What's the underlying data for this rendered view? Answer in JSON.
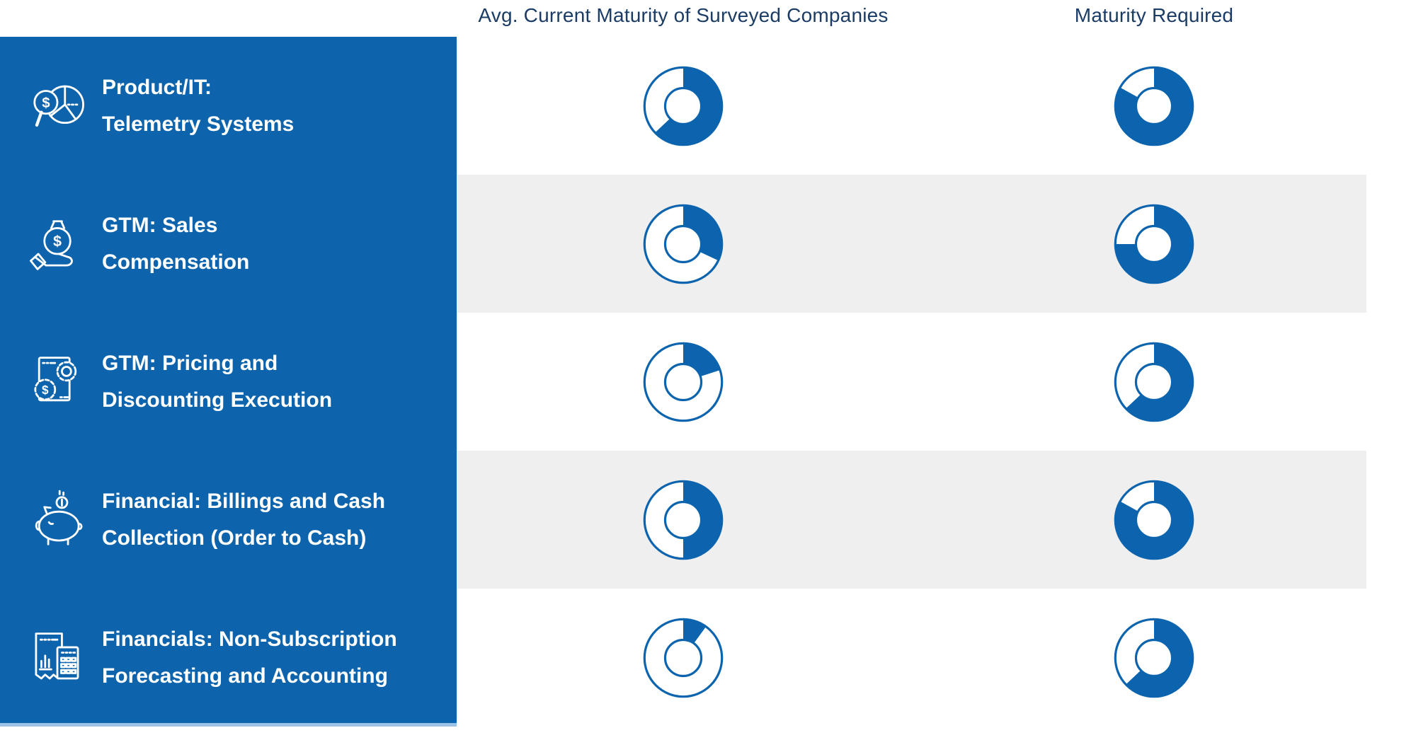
{
  "colors": {
    "sidebar_blue": "#0d63ac",
    "donut_blue": "#0d64ae",
    "header_text": "#1b3c66",
    "stripe_gray": "#efefef"
  },
  "header": {
    "col1": "Avg. Current Maturity of Surveyed Companies",
    "col2": "Maturity Required"
  },
  "rows": [
    {
      "line1": "Product/IT:",
      "line2": "Telemetry Systems",
      "icon": "magnifier-dollar-pie-icon"
    },
    {
      "line1": "GTM: Sales",
      "line2": "Compensation",
      "icon": "money-bag-hand-icon"
    },
    {
      "line1": "GTM: Pricing and",
      "line2": "Discounting Execution",
      "icon": "document-gears-icon"
    },
    {
      "line1": "Financial: Billings and Cash",
      "line2": "Collection (Order to Cash)",
      "icon": "piggy-bank-icon"
    },
    {
      "line1": "Financials: Non-Subscription",
      "line2": "Forecasting and Accounting",
      "icon": "receipt-calculator-icon"
    }
  ],
  "chart_data": {
    "type": "donut-table",
    "columns": [
      "Avg. Current Maturity of Surveyed Companies",
      "Maturity Required"
    ],
    "unit": "donut fill percent, drawn clockwise from top",
    "rows": [
      {
        "label": "Product/IT: Telemetry Systems",
        "current_maturity_pct": 63,
        "required_maturity_pct": 83
      },
      {
        "label": "GTM: Sales Compensation",
        "current_maturity_pct": 32,
        "required_maturity_pct": 75
      },
      {
        "label": "GTM: Pricing and Discounting Execution",
        "current_maturity_pct": 20,
        "required_maturity_pct": 63
      },
      {
        "label": "Financial: Billings and Cash Collection (Order to Cash)",
        "current_maturity_pct": 50,
        "required_maturity_pct": 83
      },
      {
        "label": "Financials: Non-Subscription Forecasting and Accounting",
        "current_maturity_pct": 10,
        "required_maturity_pct": 63
      }
    ]
  }
}
